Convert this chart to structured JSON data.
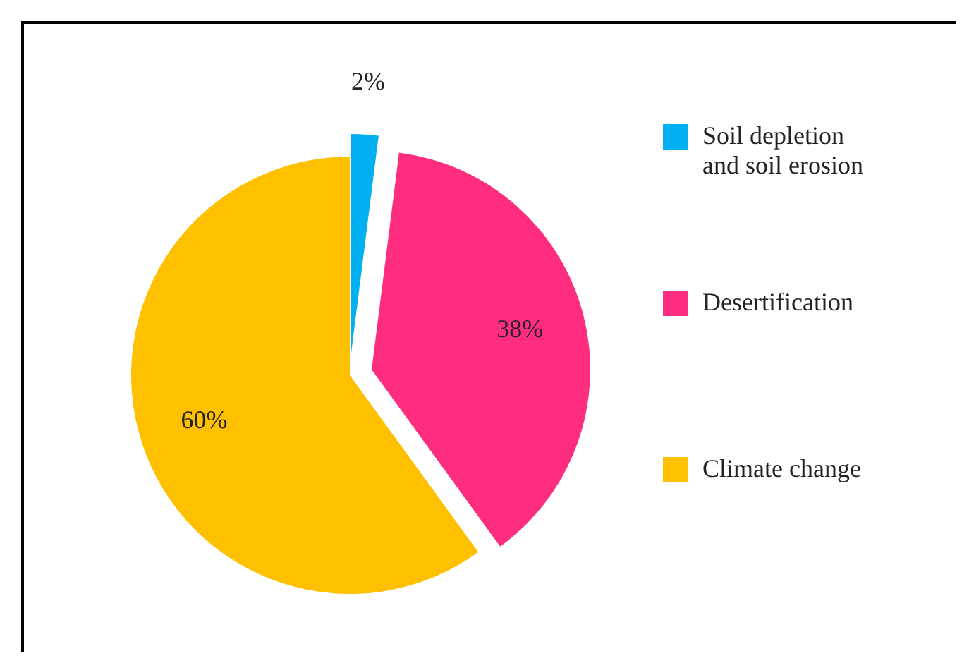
{
  "chart_data": {
    "type": "pie",
    "categories": [
      "Soil depletion and soil erosion",
      "Desertification",
      "Climate change"
    ],
    "values": [
      2,
      38,
      60
    ],
    "colors": [
      "#00b0f0",
      "#ff2d7f",
      "#ffc000"
    ],
    "value_labels": [
      "2%",
      "38%",
      "60%"
    ],
    "legend": "right"
  }
}
